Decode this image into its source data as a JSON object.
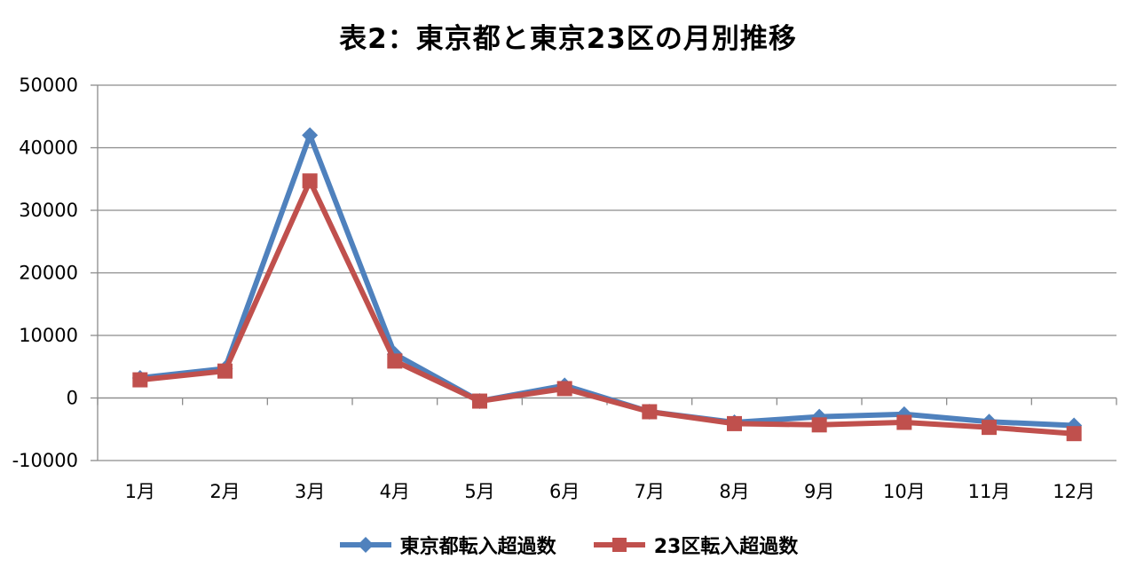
{
  "chart_data": {
    "type": "line",
    "title": "表2：東京都と東京23区の月別推移",
    "categories": [
      "1月",
      "2月",
      "3月",
      "4月",
      "5月",
      "6月",
      "7月",
      "8月",
      "9月",
      "10月",
      "11月",
      "12月"
    ],
    "y_ticks": [
      "50000",
      "40000",
      "30000",
      "20000",
      "10000",
      "0",
      "-10000"
    ],
    "ylim": [
      -10000,
      50000
    ],
    "grid": true,
    "legend_position": "bottom",
    "series": [
      {
        "name": "東京都転入超過数",
        "color": "#4F81BD",
        "marker": "diamond",
        "values": [
          3200,
          4700,
          42000,
          7000,
          -500,
          2000,
          -2200,
          -3900,
          -3000,
          -2600,
          -3800,
          -4400
        ]
      },
      {
        "name": "23区転入超過数",
        "color": "#C0504D",
        "marker": "square",
        "values": [
          2900,
          4300,
          34700,
          5900,
          -500,
          1500,
          -2200,
          -4100,
          -4300,
          -3900,
          -4700,
          -5700
        ]
      }
    ]
  }
}
